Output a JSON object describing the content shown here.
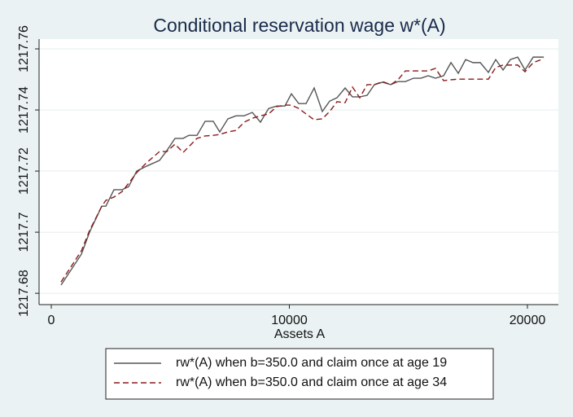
{
  "chart_data": {
    "type": "line",
    "title": "Conditional reservation wage w*(A)",
    "x_label": "Assets A",
    "x": [
      410,
      1265,
      1607,
      2120,
      2291,
      2633,
      2975,
      3248,
      3590,
      4000,
      4547,
      4855,
      5197,
      5539,
      5778,
      6120,
      6462,
      6804,
      7077,
      7419,
      7761,
      8103,
      8445,
      8787,
      9129,
      9471,
      9813,
      10086,
      10394,
      10702,
      11043,
      11385,
      11693,
      12001,
      12343,
      12650,
      12958,
      13266,
      13574,
      13916,
      14258,
      14565,
      14873,
      15215,
      15523,
      15831,
      16138,
      16480,
      16788,
      17096,
      17404,
      17711,
      18019,
      18361,
      18668,
      18976,
      19284,
      19592,
      19900,
      20242,
      20686
    ],
    "series": [
      {
        "name": "rw*(A) when b=350.0 and claim once at age 19",
        "color": "#555555",
        "dash": false,
        "values": [
          1217.6827,
          1217.6928,
          1217.7,
          1217.7085,
          1217.7085,
          1217.7139,
          1217.7139,
          1217.7149,
          1217.72,
          1217.7216,
          1217.7235,
          1217.7267,
          1217.7307,
          1217.7307,
          1217.7317,
          1217.7317,
          1217.7363,
          1217.7363,
          1217.7328,
          1217.7371,
          1217.7381,
          1217.7381,
          1217.7392,
          1217.736,
          1217.7405,
          1217.7413,
          1217.7413,
          1217.7453,
          1217.7421,
          1217.7421,
          1217.7472,
          1217.7395,
          1217.7429,
          1217.744,
          1217.7472,
          1217.7443,
          1217.7443,
          1217.7448,
          1217.7483,
          1217.7491,
          1217.7483,
          1217.7493,
          1217.7493,
          1217.7504,
          1217.7504,
          1217.7512,
          1217.7504,
          1217.7512,
          1217.7555,
          1217.752,
          1217.7565,
          1217.7555,
          1217.7555,
          1217.7523,
          1217.7565,
          1217.7531,
          1217.7565,
          1217.7573,
          1217.7531,
          1217.7573,
          1217.7573
        ]
      },
      {
        "name": "rw*(A) when b=350.0 and claim once at age 34",
        "color": "#8b1a1a",
        "dash": true,
        "values": [
          1217.6837,
          1217.6939,
          1217.7005,
          1217.7085,
          1217.7104,
          1217.7115,
          1217.7133,
          1217.716,
          1217.7195,
          1217.7227,
          1217.7264,
          1217.7264,
          1217.7288,
          1217.7261,
          1217.728,
          1217.7307,
          1217.7315,
          1217.7317,
          1217.732,
          1217.7328,
          1217.7333,
          1217.736,
          1217.7373,
          1217.7381,
          1217.7387,
          1217.7411,
          1217.7416,
          1217.7416,
          1217.7405,
          1217.7387,
          1217.7368,
          1217.7371,
          1217.7395,
          1217.7427,
          1217.7424,
          1217.7475,
          1217.744,
          1217.7483,
          1217.7483,
          1217.7493,
          1217.7483,
          1217.7499,
          1217.7528,
          1217.7528,
          1217.7528,
          1217.7528,
          1217.7536,
          1217.7496,
          1217.7499,
          1217.7501,
          1217.7501,
          1217.7501,
          1217.7501,
          1217.7501,
          1217.7539,
          1217.7547,
          1217.7547,
          1217.7547,
          1217.7525,
          1217.7555,
          1217.7568
        ]
      }
    ],
    "xlim": [
      -513,
      21299
    ],
    "xticks": [
      0,
      10000,
      20000
    ],
    "ylim": [
      1217.6763,
      1217.7632
    ],
    "yticks": [
      1217.68,
      1217.7,
      1217.72,
      1217.74,
      1217.76
    ],
    "grid": true,
    "legend": "bottom"
  }
}
